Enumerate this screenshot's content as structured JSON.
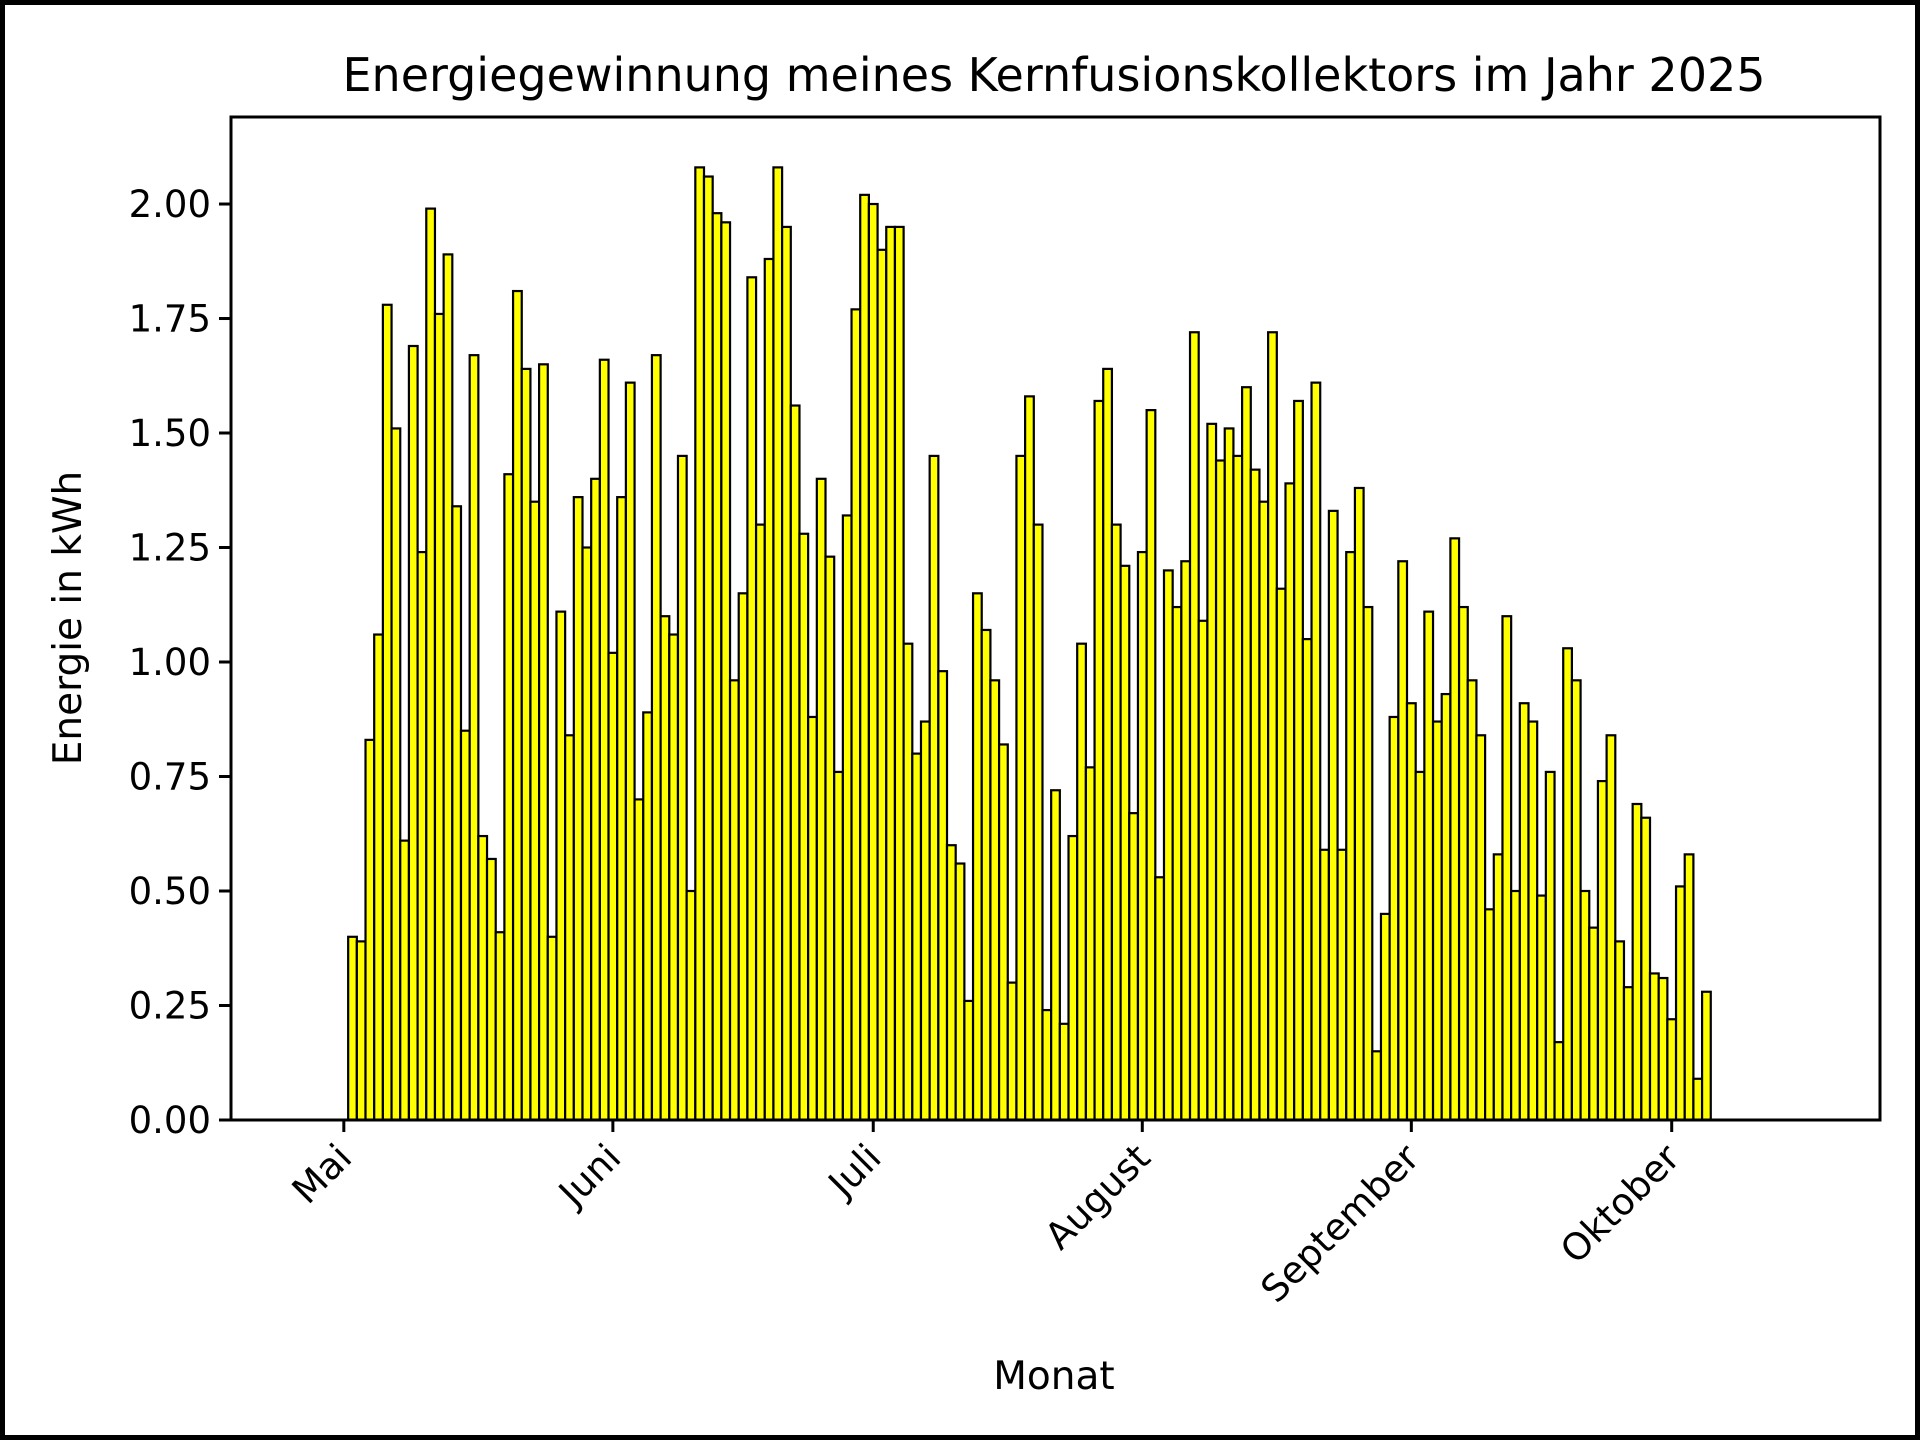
{
  "chart_data": {
    "type": "bar",
    "title": "Energiegewinnung meines Kernfusionskollektors im Jahr 2025",
    "xlabel": "Monat",
    "ylabel": "Energie in kWh",
    "ylim": [
      0,
      2.19
    ],
    "yticks": [
      "0.00",
      "0.25",
      "0.50",
      "0.75",
      "1.00",
      "1.25",
      "1.50",
      "1.75",
      "2.00"
    ],
    "xlim": [
      "2025-04-18",
      "2025-10-25"
    ],
    "xticks": [
      {
        "date": "2025-05-01",
        "label": "Mai"
      },
      {
        "date": "2025-06-01",
        "label": "Juni"
      },
      {
        "date": "2025-07-01",
        "label": "Juli"
      },
      {
        "date": "2025-08-01",
        "label": "August"
      },
      {
        "date": "2025-09-01",
        "label": "September"
      },
      {
        "date": "2025-10-01",
        "label": "Oktober"
      }
    ],
    "grid": false,
    "bar_color": "#ffff00",
    "edge_color": "#000000",
    "series": [
      {
        "start_date": "2025-05-01",
        "values": [
          0.0,
          0.4,
          0.39,
          0.83,
          1.06,
          1.78,
          1.51,
          0.61,
          1.69,
          1.24,
          1.99,
          1.76,
          1.89,
          1.34,
          0.85,
          1.67,
          0.62,
          0.57,
          0.41,
          1.41,
          1.81,
          1.64,
          1.35,
          1.65,
          0.4,
          1.11,
          0.84,
          1.36,
          1.25,
          1.4,
          1.66,
          1.02,
          1.36,
          1.61,
          0.7,
          0.89,
          1.67,
          1.1,
          1.06,
          1.45,
          0.5,
          2.08,
          2.06,
          1.98,
          1.96,
          0.96,
          1.15,
          1.84,
          1.3,
          1.88,
          2.08,
          1.95,
          1.56,
          1.28,
          0.88,
          1.4,
          1.23,
          0.76,
          1.32,
          1.77,
          2.02,
          2.0,
          1.9,
          1.95,
          1.95,
          1.04,
          0.8,
          0.87,
          1.45,
          0.98,
          0.6,
          0.56,
          0.26,
          1.15,
          1.07,
          0.96,
          0.82,
          0.3,
          1.45,
          1.58,
          1.3,
          0.24,
          0.72,
          0.21,
          0.62,
          1.04,
          0.77,
          1.57,
          1.64,
          1.3,
          1.21,
          0.67,
          1.24,
          1.55,
          0.53,
          1.2,
          1.12,
          1.22,
          1.72,
          1.09,
          1.52,
          1.44,
          1.51,
          1.45,
          1.6,
          1.42,
          1.35,
          1.72,
          1.16,
          1.39,
          1.57,
          1.05,
          1.61,
          0.59,
          1.33,
          0.59,
          1.24,
          1.38,
          1.12,
          0.15,
          0.45,
          0.88,
          1.22,
          0.91,
          0.76,
          1.11,
          0.87,
          0.93,
          1.27,
          1.12,
          0.96,
          0.84,
          0.46,
          0.58,
          1.1,
          0.5,
          0.91,
          0.87,
          0.49,
          0.76,
          0.17,
          1.03,
          0.96,
          0.5,
          0.42,
          0.74,
          0.84,
          0.39,
          0.29,
          0.69,
          0.66,
          0.32,
          0.31,
          0.22,
          0.51,
          0.58,
          0.09,
          0.28
        ]
      }
    ]
  }
}
